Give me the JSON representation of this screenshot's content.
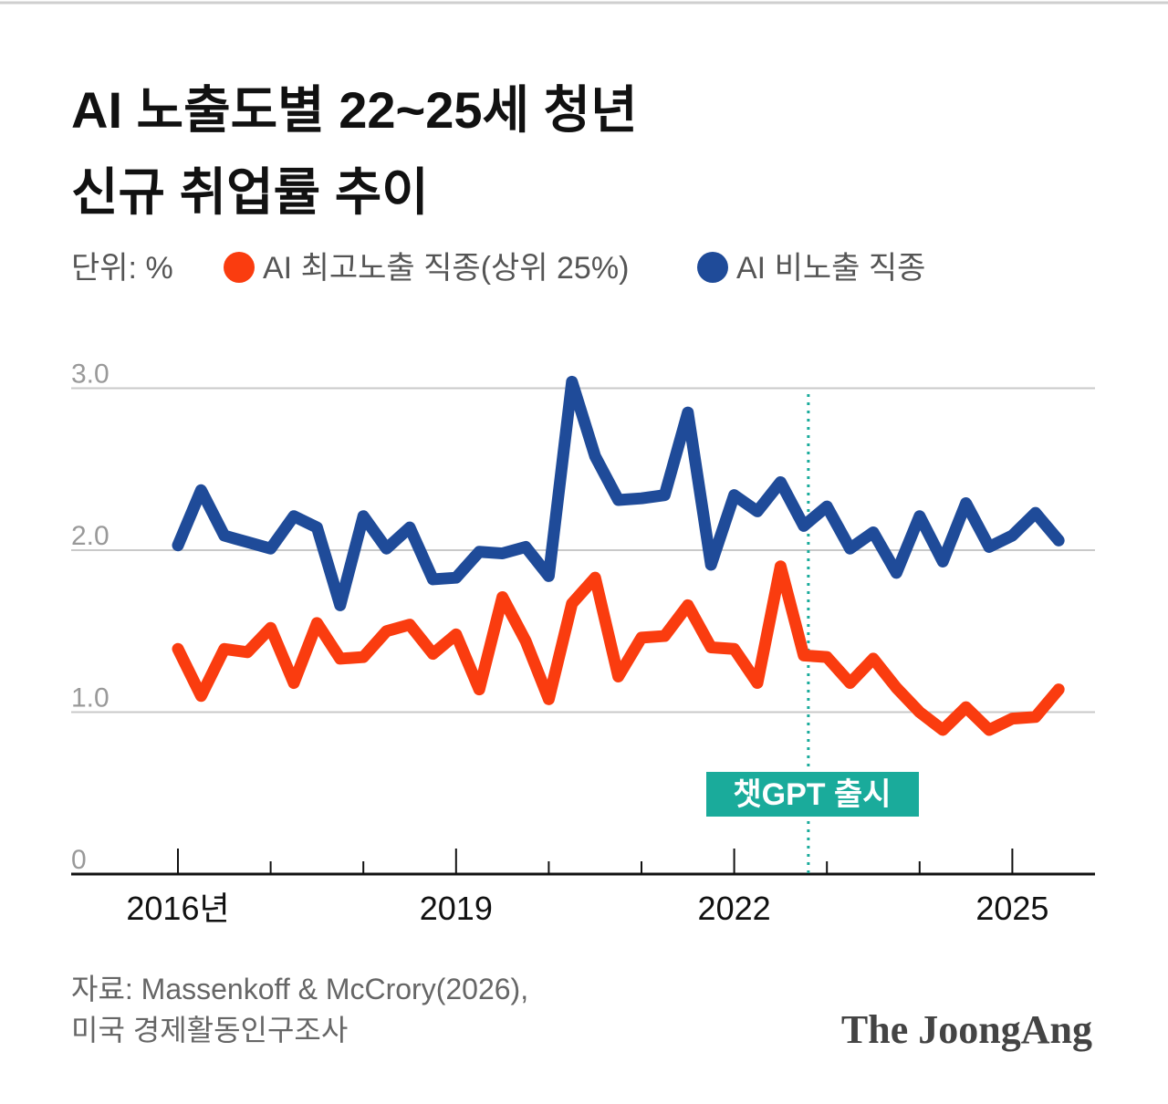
{
  "chart_data": {
    "type": "line",
    "title": [
      "AI 노출도별 22~25세 청년",
      "신규 취업률 추이"
    ],
    "unit": "단위: %",
    "categories": [
      "2016년",
      null,
      null,
      null,
      null,
      null,
      null,
      null,
      null,
      null,
      null,
      null,
      "2019",
      null,
      null,
      null,
      null,
      null,
      null,
      null,
      null,
      null,
      null,
      null,
      "2022",
      null,
      null,
      null,
      null,
      null,
      null,
      null,
      null,
      null,
      null,
      null,
      "2025",
      null,
      null
    ],
    "series": [
      {
        "name": "AI 최고노출 직종(상위 25%)",
        "color": "#fa3c0f",
        "values": [
          1.39,
          1.1,
          1.39,
          1.37,
          1.52,
          1.18,
          1.55,
          1.33,
          1.34,
          1.5,
          1.54,
          1.36,
          1.48,
          1.14,
          1.71,
          1.44,
          1.08,
          1.67,
          1.83,
          1.22,
          1.46,
          1.47,
          1.66,
          1.4,
          1.39,
          1.18,
          1.9,
          1.35,
          1.34,
          1.18,
          1.33,
          1.15,
          1.0,
          0.89,
          1.03,
          0.89,
          0.96,
          0.97,
          1.14
        ]
      },
      {
        "name": "AI 비노출 직종",
        "color": "#1f4b99",
        "values": [
          2.03,
          2.37,
          2.09,
          2.05,
          2.01,
          2.21,
          2.14,
          1.66,
          2.21,
          2.01,
          2.14,
          1.82,
          1.83,
          1.99,
          1.98,
          2.02,
          1.84,
          3.04,
          2.58,
          2.31,
          2.32,
          2.34,
          2.85,
          1.91,
          2.34,
          2.24,
          2.42,
          2.15,
          2.27,
          2.01,
          2.11,
          1.86,
          2.21,
          1.93,
          2.29,
          2.02,
          2.09,
          2.23,
          2.06
        ]
      }
    ],
    "ylim": [
      0,
      3.1
    ],
    "yticks": [
      0,
      {
        "value": 1,
        "label": "1.0"
      },
      {
        "value": 2,
        "label": "2.0"
      },
      {
        "value": 3,
        "label": "3.0"
      }
    ],
    "grid": true,
    "annotation": "챗GPT 출시",
    "source": [
      "자료: Massenkoff & McCrory(2026),",
      "미국 경제활동인구조사"
    ],
    "brand": "The JoongAng"
  }
}
